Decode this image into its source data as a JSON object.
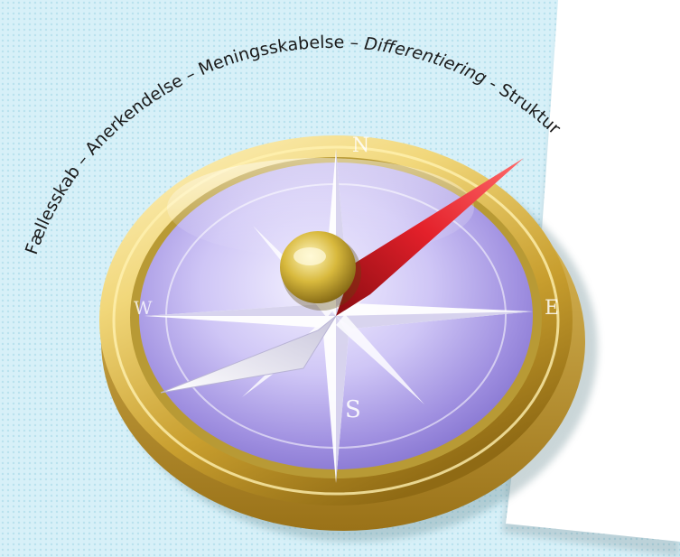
{
  "arc_text": {
    "segment_1": "Fællesskab –",
    "segment_2": "Anerkendelse –",
    "segment_3": "Meningsskabelse –",
    "segment_4": "Differentiering -",
    "segment_5": "Struktur"
  },
  "compass": {
    "letters": {
      "north": "N",
      "south": "S",
      "east": "E",
      "west": "W"
    }
  },
  "colors": {
    "background": "#d7f0f8",
    "paper": "#ffffff",
    "gold": "#d9b845",
    "dial_violet": "#b7a9e9",
    "needle_red": "#e3202a",
    "text": "#1a1a1a"
  },
  "icons": [
    "compass-icon"
  ]
}
